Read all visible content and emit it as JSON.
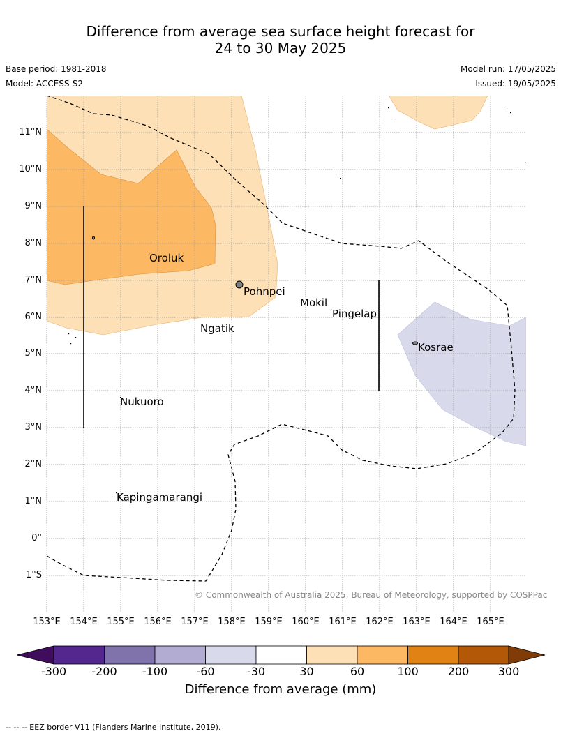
{
  "title_line1": "Difference from average sea surface height forecast for",
  "title_line2": "24 to 30 May 2025",
  "base_period": "Base period: 1981-2018",
  "model": "Model: ACCESS-S2",
  "model_run": "Model run: 17/05/2025",
  "issued": "Issued: 19/05/2025",
  "lat_labels": [
    "11°N",
    "10°N",
    "9°N",
    "8°N",
    "7°N",
    "6°N",
    "5°N",
    "4°N",
    "3°N",
    "2°N",
    "1°N",
    "0°",
    "1°S"
  ],
  "lon_labels": [
    "153°E",
    "154°E",
    "155°E",
    "156°E",
    "157°E",
    "158°E",
    "159°E",
    "160°E",
    "161°E",
    "162°E",
    "163°E",
    "164°E",
    "165°E"
  ],
  "places": {
    "oroluk": "Oroluk",
    "pohnpei": "Pohnpei",
    "mokil": "Mokil",
    "pingelap": "Pingelap",
    "ngatik": "Ngatik",
    "kosrae": "Kosrae",
    "nukuoro": "Nukuoro",
    "kapingamarangi": "Kapingamarangi"
  },
  "copyright": "© Commonwealth of Australia 2025, Bureau of Meteorology, supported by COSPPac",
  "colorbar": {
    "title": "Difference from average (mm)",
    "ticks": [
      "-300",
      "-200",
      "-100",
      "-60",
      "-30",
      "30",
      "60",
      "100",
      "200",
      "300"
    ],
    "colors": [
      "#3f0d5c",
      "#54278f",
      "#8073ac",
      "#b2abd2",
      "#d8daeb",
      "#ffffff",
      "#fee0b6",
      "#fdb863",
      "#e08214",
      "#b35806",
      "#7f3b08"
    ]
  },
  "footnote": "--  --  -- EEZ border V11 (Flanders Marine Institute, 2019)."
}
